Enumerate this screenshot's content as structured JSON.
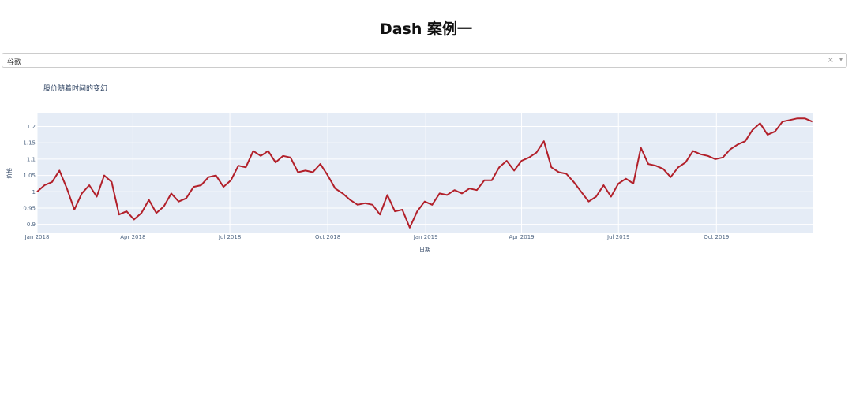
{
  "page": {
    "title": "Dash 案例一"
  },
  "dropdown": {
    "selected": "谷歌",
    "clear_symbol": "×",
    "arrow_symbol": "▾"
  },
  "colors": {
    "plot_bg": "#e5ecf6",
    "grid": "#ffffff",
    "line": "#b2202a",
    "tick": "#506784"
  },
  "chart_data": {
    "type": "line",
    "title": "股价随着时间的变幻",
    "xlabel": "日期",
    "ylabel": "价格",
    "x_range": [
      "2018-01-01",
      "2019-12-31"
    ],
    "ylim": [
      0.875,
      1.24
    ],
    "grid": true,
    "x_ticks": [
      {
        "date": "2018-01-01",
        "label": "Jan 2018"
      },
      {
        "date": "2018-04-01",
        "label": "Apr 2018"
      },
      {
        "date": "2018-07-01",
        "label": "Jul 2018"
      },
      {
        "date": "2018-10-01",
        "label": "Oct 2018"
      },
      {
        "date": "2019-01-01",
        "label": "Jan 2019"
      },
      {
        "date": "2019-04-01",
        "label": "Apr 2019"
      },
      {
        "date": "2019-07-01",
        "label": "Jul 2019"
      },
      {
        "date": "2019-10-01",
        "label": "Oct 2019"
      }
    ],
    "y_ticks": [
      {
        "value": 0.9,
        "label": "0.9"
      },
      {
        "value": 0.95,
        "label": "0.95"
      },
      {
        "value": 1.0,
        "label": "1"
      },
      {
        "value": 1.05,
        "label": "1.05"
      },
      {
        "value": 1.1,
        "label": "1.1"
      },
      {
        "value": 1.15,
        "label": "1.15"
      },
      {
        "value": 1.2,
        "label": "1.2"
      }
    ],
    "series": [
      {
        "x": [
          "2018-01-01",
          "2018-01-08",
          "2018-01-15",
          "2018-01-22",
          "2018-01-29",
          "2018-02-05",
          "2018-02-12",
          "2018-02-19",
          "2018-02-26",
          "2018-03-05",
          "2018-03-12",
          "2018-03-19",
          "2018-03-26",
          "2018-04-02",
          "2018-04-09",
          "2018-04-16",
          "2018-04-23",
          "2018-04-30",
          "2018-05-07",
          "2018-05-14",
          "2018-05-21",
          "2018-05-28",
          "2018-06-04",
          "2018-06-11",
          "2018-06-18",
          "2018-06-25",
          "2018-07-02",
          "2018-07-09",
          "2018-07-16",
          "2018-07-23",
          "2018-07-30",
          "2018-08-06",
          "2018-08-13",
          "2018-08-20",
          "2018-08-27",
          "2018-09-03",
          "2018-09-10",
          "2018-09-17",
          "2018-09-24",
          "2018-10-01",
          "2018-10-08",
          "2018-10-15",
          "2018-10-22",
          "2018-10-29",
          "2018-11-05",
          "2018-11-12",
          "2018-11-19",
          "2018-11-26",
          "2018-12-03",
          "2018-12-10",
          "2018-12-17",
          "2018-12-24",
          "2018-12-31",
          "2019-01-07",
          "2019-01-14",
          "2019-01-21",
          "2019-01-28",
          "2019-02-04",
          "2019-02-11",
          "2019-02-18",
          "2019-02-25",
          "2019-03-04",
          "2019-03-11",
          "2019-03-18",
          "2019-03-25",
          "2019-04-01",
          "2019-04-08",
          "2019-04-15",
          "2019-04-22",
          "2019-04-29",
          "2019-05-06",
          "2019-05-13",
          "2019-05-20",
          "2019-05-27",
          "2019-06-03",
          "2019-06-10",
          "2019-06-17",
          "2019-06-24",
          "2019-07-01",
          "2019-07-08",
          "2019-07-15",
          "2019-07-22",
          "2019-07-29",
          "2019-08-05",
          "2019-08-12",
          "2019-08-19",
          "2019-08-26",
          "2019-09-02",
          "2019-09-09",
          "2019-09-16",
          "2019-09-23",
          "2019-09-30",
          "2019-10-07",
          "2019-10-14",
          "2019-10-21",
          "2019-10-28",
          "2019-11-04",
          "2019-11-11",
          "2019-11-18",
          "2019-11-25",
          "2019-12-02",
          "2019-12-09",
          "2019-12-16",
          "2019-12-23",
          "2019-12-30"
        ],
        "values": [
          1.0,
          1.02,
          1.03,
          1.065,
          1.01,
          0.945,
          0.995,
          1.02,
          0.985,
          1.05,
          1.03,
          0.93,
          0.94,
          0.915,
          0.935,
          0.975,
          0.935,
          0.955,
          0.995,
          0.97,
          0.98,
          1.015,
          1.02,
          1.045,
          1.05,
          1.015,
          1.035,
          1.08,
          1.075,
          1.125,
          1.11,
          1.125,
          1.09,
          1.11,
          1.105,
          1.06,
          1.065,
          1.06,
          1.085,
          1.05,
          1.01,
          0.995,
          0.975,
          0.96,
          0.965,
          0.96,
          0.93,
          0.99,
          0.94,
          0.945,
          0.89,
          0.94,
          0.97,
          0.96,
          0.995,
          0.99,
          1.005,
          0.995,
          1.01,
          1.005,
          1.035,
          1.035,
          1.075,
          1.095,
          1.065,
          1.095,
          1.105,
          1.12,
          1.155,
          1.075,
          1.06,
          1.055,
          1.03,
          1.0,
          0.97,
          0.985,
          1.02,
          0.985,
          1.025,
          1.04,
          1.025,
          1.135,
          1.085,
          1.08,
          1.07,
          1.045,
          1.075,
          1.09,
          1.125,
          1.115,
          1.11,
          1.1,
          1.105,
          1.13,
          1.145,
          1.155,
          1.19,
          1.21,
          1.175,
          1.185,
          1.215,
          1.22,
          1.225,
          1.225,
          1.215
        ]
      }
    ]
  }
}
